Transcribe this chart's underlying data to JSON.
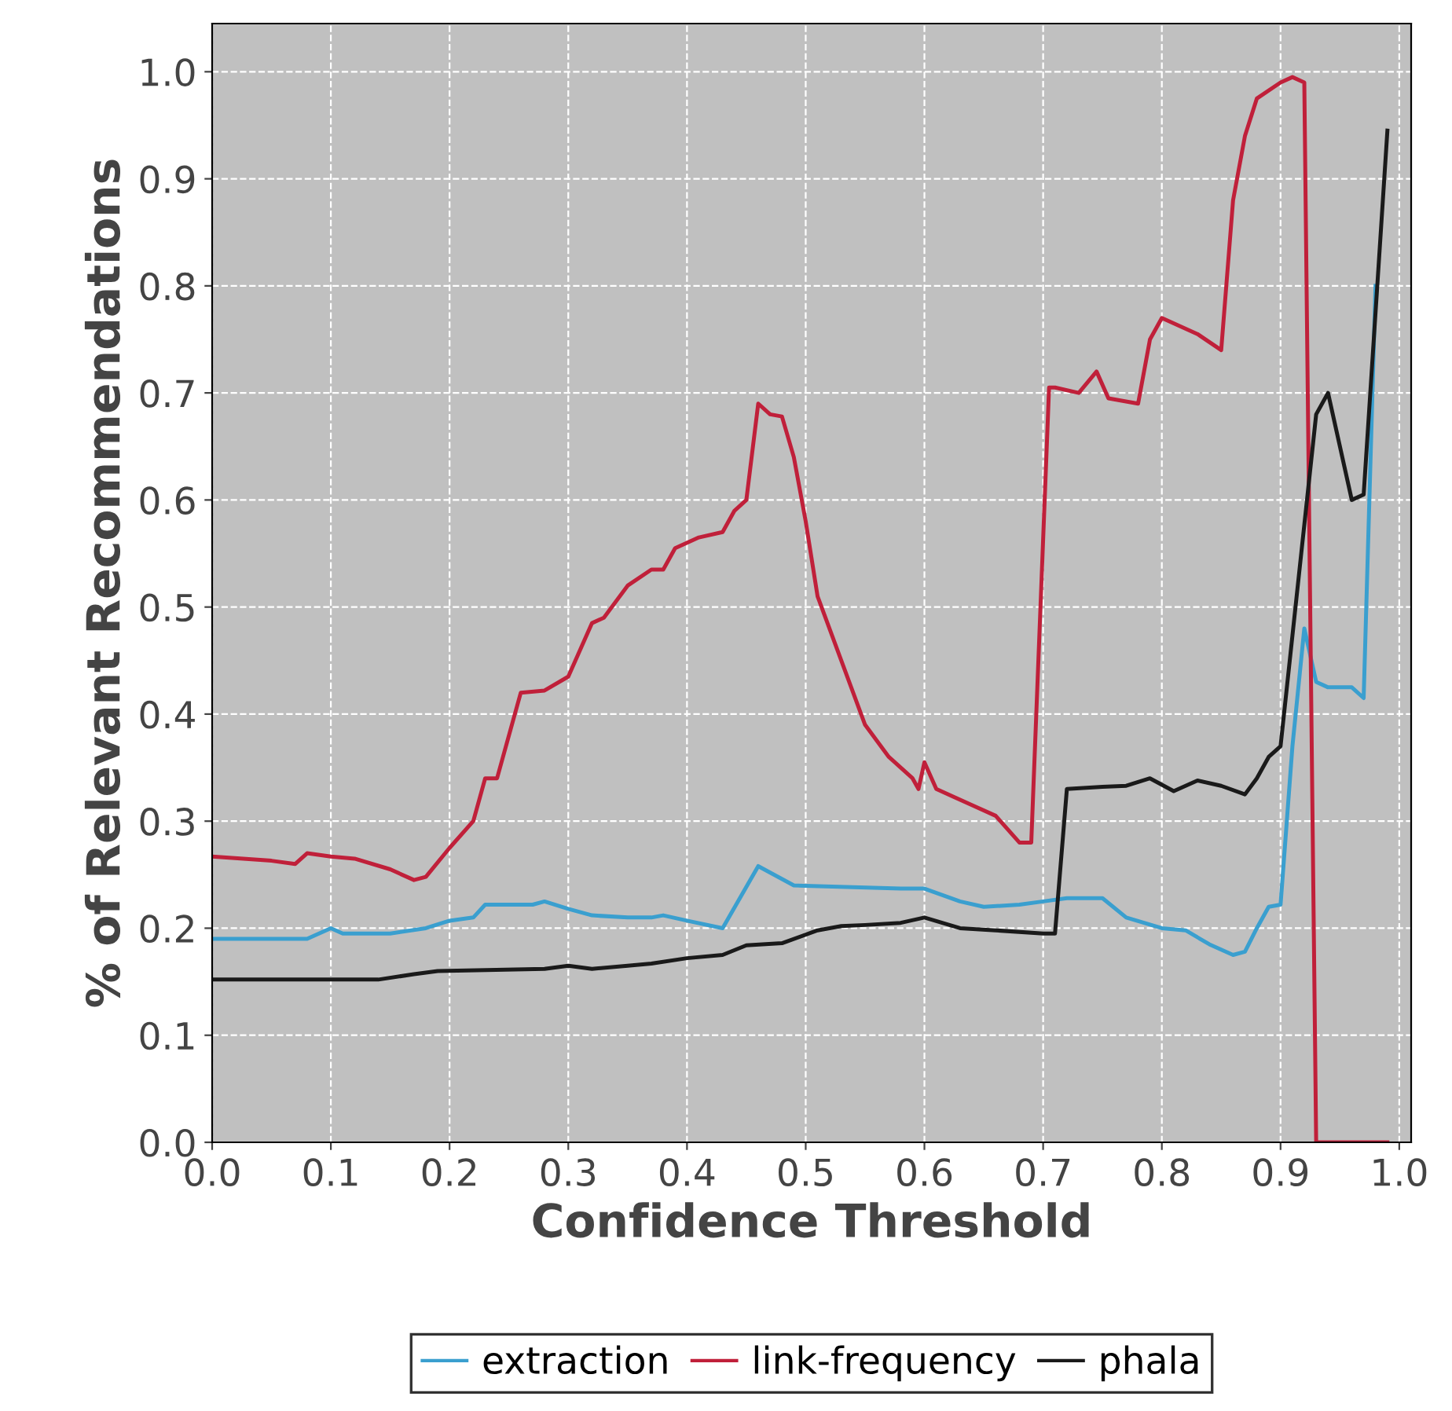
{
  "chart_data": {
    "type": "line",
    "xlabel": "Confidence Threshold",
    "ylabel": "% of Relevant Recommendations",
    "xlim": [
      0,
      1.01
    ],
    "ylim": [
      0,
      1.045
    ],
    "xticks": [
      {
        "value": 0,
        "label": "0.0"
      },
      0.1,
      0.2,
      0.3,
      0.4,
      0.5,
      0.6,
      0.7,
      0.8,
      0.9,
      {
        "value": 1,
        "label": "1.0"
      }
    ],
    "yticks": [
      {
        "value": 0,
        "label": "0.0"
      },
      0.1,
      0.2,
      0.3,
      0.4,
      0.5,
      0.6,
      0.7,
      0.8,
      0.9,
      {
        "value": 1,
        "label": "1.0"
      }
    ],
    "grid": true,
    "legend": "bottom",
    "marker": "none",
    "line_style": "solid",
    "series": [
      {
        "name": "extraction",
        "color": "#3a9fcf",
        "x": [
          0,
          0.08,
          0.1,
          0.11,
          0.15,
          0.18,
          0.2,
          0.22,
          0.23,
          0.27,
          0.28,
          0.3,
          0.32,
          0.35,
          0.37,
          0.38,
          0.4,
          0.43,
          0.46,
          0.49,
          0.58,
          0.6,
          0.63,
          0.65,
          0.68,
          0.7,
          0.72,
          0.75,
          0.77,
          0.8,
          0.82,
          0.84,
          0.86,
          0.87,
          0.88,
          0.89,
          0.9,
          0.91,
          0.92,
          0.93,
          0.94,
          0.96,
          0.97,
          0.98
        ],
        "values": [
          0.19,
          0.19,
          0.2,
          0.195,
          0.195,
          0.2,
          0.207,
          0.21,
          0.222,
          0.222,
          0.225,
          0.218,
          0.212,
          0.21,
          0.21,
          0.212,
          0.207,
          0.2,
          0.258,
          0.24,
          0.237,
          0.237,
          0.225,
          0.22,
          0.222,
          0.225,
          0.228,
          0.228,
          0.21,
          0.2,
          0.198,
          0.185,
          0.175,
          0.178,
          0.2,
          0.22,
          0.222,
          0.37,
          0.48,
          0.43,
          0.425,
          0.425,
          0.415,
          0.8
        ]
      },
      {
        "name": "link-frequency",
        "color": "#c0203a",
        "x": [
          0,
          0.05,
          0.07,
          0.08,
          0.1,
          0.12,
          0.15,
          0.17,
          0.18,
          0.2,
          0.22,
          0.23,
          0.24,
          0.26,
          0.28,
          0.3,
          0.32,
          0.33,
          0.35,
          0.37,
          0.38,
          0.39,
          0.41,
          0.43,
          0.44,
          0.45,
          0.46,
          0.47,
          0.48,
          0.49,
          0.5,
          0.51,
          0.53,
          0.55,
          0.57,
          0.59,
          0.595,
          0.6,
          0.61,
          0.64,
          0.66,
          0.68,
          0.69,
          0.705,
          0.71,
          0.73,
          0.745,
          0.755,
          0.78,
          0.79,
          0.8,
          0.83,
          0.85,
          0.86,
          0.87,
          0.88,
          0.9,
          0.91,
          0.92,
          0.93,
          0.99
        ],
        "values": [
          0.267,
          0.263,
          0.26,
          0.27,
          0.267,
          0.265,
          0.255,
          0.245,
          0.248,
          0.275,
          0.3,
          0.34,
          0.34,
          0.42,
          0.422,
          0.435,
          0.485,
          0.49,
          0.52,
          0.535,
          0.535,
          0.555,
          0.565,
          0.57,
          0.59,
          0.6,
          0.69,
          0.68,
          0.678,
          0.64,
          0.58,
          0.51,
          0.45,
          0.39,
          0.36,
          0.34,
          0.33,
          0.355,
          0.33,
          0.315,
          0.305,
          0.28,
          0.28,
          0.705,
          0.705,
          0.7,
          0.72,
          0.695,
          0.69,
          0.75,
          0.77,
          0.755,
          0.74,
          0.88,
          0.94,
          0.975,
          0.99,
          0.995,
          0.99,
          0.0,
          0.0
        ]
      },
      {
        "name": "phala",
        "color": "#1a1a1a",
        "x": [
          0,
          0.14,
          0.17,
          0.19,
          0.28,
          0.3,
          0.32,
          0.35,
          0.37,
          0.4,
          0.43,
          0.45,
          0.48,
          0.51,
          0.53,
          0.55,
          0.58,
          0.6,
          0.63,
          0.66,
          0.7,
          0.71,
          0.72,
          0.75,
          0.77,
          0.79,
          0.81,
          0.83,
          0.85,
          0.87,
          0.88,
          0.89,
          0.9,
          0.93,
          0.94,
          0.96,
          0.97,
          0.99
        ],
        "values": [
          0.152,
          0.152,
          0.157,
          0.16,
          0.162,
          0.165,
          0.162,
          0.165,
          0.167,
          0.172,
          0.175,
          0.184,
          0.186,
          0.198,
          0.202,
          0.203,
          0.205,
          0.21,
          0.2,
          0.198,
          0.195,
          0.195,
          0.33,
          0.332,
          0.333,
          0.34,
          0.328,
          0.338,
          0.333,
          0.325,
          0.34,
          0.36,
          0.37,
          0.68,
          0.7,
          0.6,
          0.605,
          0.945
        ]
      }
    ]
  }
}
